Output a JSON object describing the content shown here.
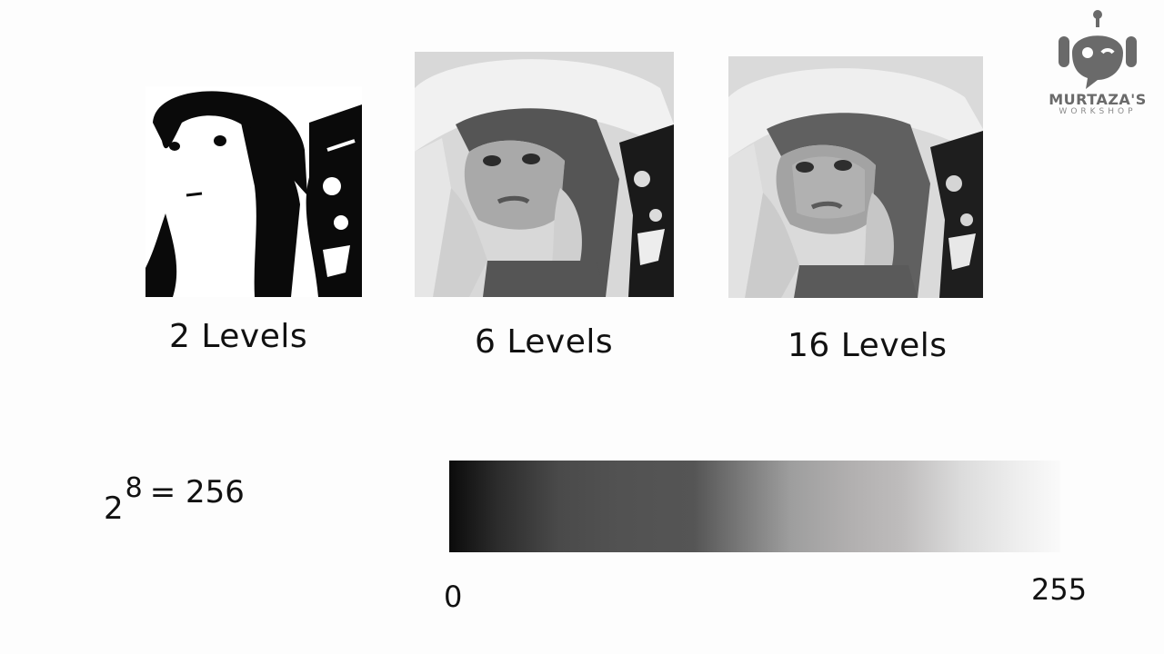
{
  "images": [
    {
      "caption": "2 Levels",
      "levels": 2
    },
    {
      "caption": "6 Levels",
      "levels": 6
    },
    {
      "caption": "16 Levels",
      "levels": 16
    }
  ],
  "formula": {
    "base": "2",
    "exponent": "8",
    "rest": "= 256"
  },
  "gradient": {
    "min_label": "0",
    "max_label": "255"
  },
  "logo": {
    "name": "MURTAZA'S",
    "sub": "WORKSHOP"
  },
  "colors": {
    "background": "#fdfdfd",
    "text": "#111111",
    "logo": "#6a6a6a"
  }
}
